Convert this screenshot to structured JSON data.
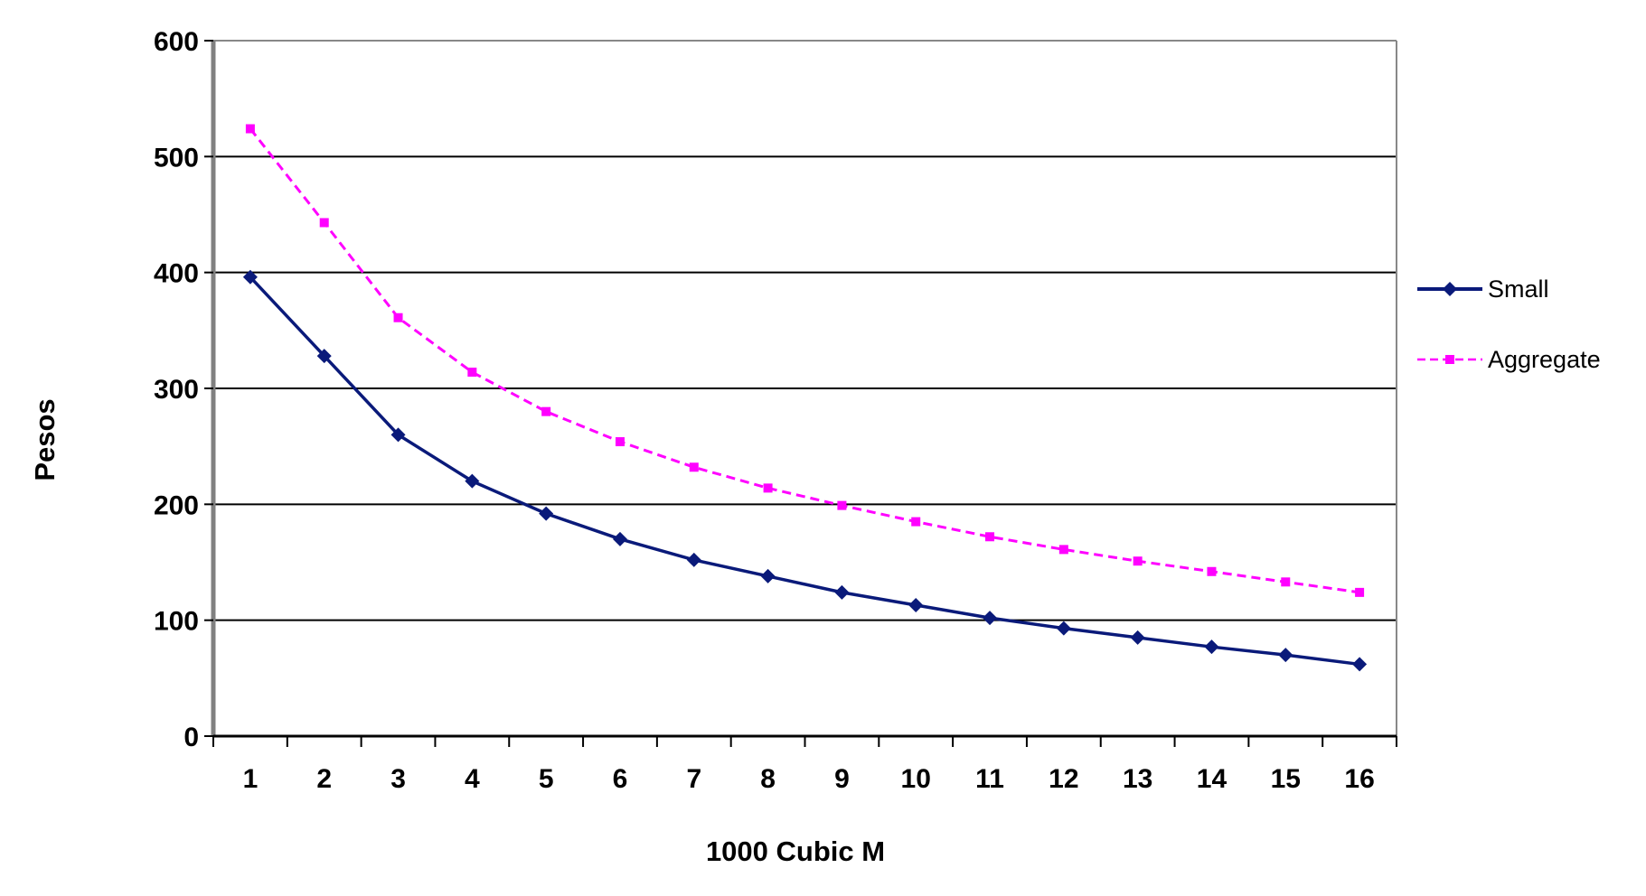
{
  "chart_data": {
    "type": "line",
    "title": "",
    "xlabel": "1000 Cubic M",
    "ylabel": "Pesos",
    "categories": [
      "1",
      "2",
      "3",
      "4",
      "5",
      "6",
      "7",
      "8",
      "9",
      "10",
      "11",
      "12",
      "13",
      "14",
      "15",
      "16"
    ],
    "ylim": [
      0,
      600
    ],
    "yticks": [
      "0",
      "100",
      "200",
      "300",
      "400",
      "500",
      "600"
    ],
    "grid": "horizontal major gridlines",
    "legend_position": "right",
    "series": [
      {
        "name": "Small",
        "color": "#0a1a7a",
        "line_style": "solid",
        "marker": "diamond",
        "values": [
          396,
          328,
          260,
          220,
          192,
          170,
          152,
          138,
          124,
          113,
          102,
          93,
          85,
          77,
          70,
          62
        ]
      },
      {
        "name": "Aggregate",
        "color": "#ff00ff",
        "line_style": "dashed",
        "marker": "square",
        "values": [
          524,
          443,
          361,
          314,
          280,
          254,
          232,
          214,
          199,
          185,
          172,
          161,
          151,
          142,
          133,
          124
        ]
      }
    ]
  }
}
